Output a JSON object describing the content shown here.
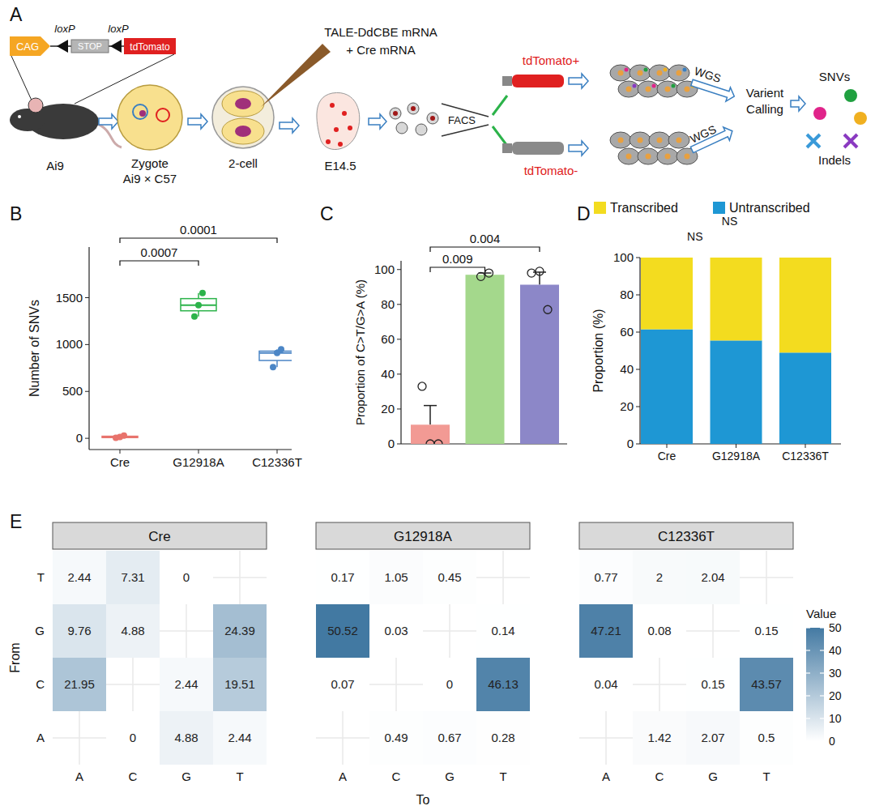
{
  "panel_labels": [
    "A",
    "B",
    "C",
    "D",
    "E"
  ],
  "diagram": {
    "promoter": "CAG",
    "site_labels": [
      "loxP",
      "loxP"
    ],
    "stop": "STOP",
    "reporter": "tdTomato",
    "mouse": "Ai9",
    "zygote": "Zygote",
    "cross": "Ai9 × C57",
    "two_cell": "2-cell",
    "injection": [
      "TALE-DdCBE mRNA",
      "+ Cre mRNA"
    ],
    "embryo": "E14.5",
    "sorting": "FACS",
    "positive": "tdTomato+",
    "negative": "tdTomato-",
    "sequencing": [
      "WGS",
      "WGS"
    ],
    "calling": [
      "Varient",
      "Calling"
    ],
    "variants": [
      "SNVs",
      "Indels"
    ]
  },
  "chart_data": [
    {
      "type": "box",
      "y_label": "Number of SNVs",
      "categories": [
        "Cre",
        "G12918A",
        "C12336T"
      ],
      "colors": [
        "#e8736c",
        "#2cb34a",
        "#4c86c6"
      ],
      "boxes": [
        {
          "min": 5,
          "q1": 8,
          "median": 15,
          "q3": 22,
          "max": 30,
          "points": [
            5,
            15,
            30
          ]
        },
        {
          "min": 1300,
          "q1": 1360,
          "median": 1420,
          "q3": 1490,
          "max": 1550,
          "points": [
            1300,
            1420,
            1550
          ]
        },
        {
          "min": 760,
          "q1": 830,
          "median": 910,
          "q3": 930,
          "max": 950,
          "points": [
            760,
            910,
            950
          ]
        }
      ],
      "ylim": [
        -120,
        2040
      ],
      "yticks": [
        0,
        500,
        1000,
        1500
      ],
      "annotations": [
        {
          "text": "0.0007",
          "between": [
            0,
            1
          ]
        },
        {
          "text": "0.0001",
          "between": [
            0,
            2
          ]
        }
      ]
    },
    {
      "type": "bar",
      "y_label": "Proportion of C>T/G>A (%)",
      "values": [
        11,
        97,
        91.3
      ],
      "errors": [
        11,
        1,
        7.2
      ],
      "points": [
        [
          33,
          0,
          0
        ],
        [
          96,
          98
        ],
        [
          98,
          99,
          77
        ]
      ],
      "colors": [
        "#f29a94",
        "#a4d88c",
        "#8c87c8"
      ],
      "ylim": [
        0,
        105
      ],
      "yticks": [
        0,
        20,
        40,
        60,
        80,
        100
      ],
      "tick_labels": "y",
      "annotations": [
        {
          "text": "0.009",
          "between": [
            0,
            1
          ]
        },
        {
          "text": "0.004",
          "between": [
            0,
            2
          ]
        }
      ]
    },
    {
      "type": "bar",
      "stacked": true,
      "y_label": "Proportion (%)",
      "categories": [
        "Cre",
        "G12918A",
        "C12336T"
      ],
      "series": [
        {
          "name": "Transcribed",
          "color": "#f3dc1f",
          "values": [
            38.5,
            44.5,
            51
          ]
        },
        {
          "name": "Untranscribed",
          "color": "#1e97d4",
          "values": [
            61.5,
            55.5,
            49
          ]
        }
      ],
      "ylim": [
        0,
        100
      ],
      "yticks": [
        0,
        20,
        40,
        60,
        80,
        100
      ],
      "legend": "top",
      "annotations": [
        {
          "text": "NS",
          "between": [
            0,
            1
          ]
        },
        {
          "text": "NS",
          "between": [
            0,
            2
          ]
        }
      ]
    },
    {
      "type": "heatmap",
      "title": "Cre",
      "rows": [
        "T",
        "G",
        "C",
        "A"
      ],
      "columns": [
        "A",
        "C",
        "G",
        "T"
      ],
      "y_label": "From",
      "data_labels": true,
      "cells": [
        [
          2.44,
          7.31,
          0,
          null
        ],
        [
          9.76,
          4.88,
          null,
          24.39
        ],
        [
          21.95,
          null,
          2.44,
          19.51
        ],
        [
          null,
          0,
          4.88,
          2.44
        ]
      ]
    },
    {
      "type": "heatmap",
      "title": "G12918A",
      "rows": [
        "T",
        "G",
        "C",
        "A"
      ],
      "columns": [
        "A",
        "C",
        "G",
        "T"
      ],
      "x_label": "To",
      "data_labels": true,
      "tick_labels": "x",
      "cells": [
        [
          0.17,
          1.05,
          0.45,
          null
        ],
        [
          50.52,
          0.03,
          null,
          0.14
        ],
        [
          0.07,
          null,
          0,
          46.13
        ],
        [
          null,
          0.49,
          0.67,
          0.28
        ]
      ]
    },
    {
      "type": "heatmap",
      "title": "C12336T",
      "rows": [
        "T",
        "G",
        "C",
        "A"
      ],
      "columns": [
        "A",
        "C",
        "G",
        "T"
      ],
      "data_labels": true,
      "tick_labels": "x",
      "cells": [
        [
          0.77,
          2,
          2.04,
          null
        ],
        [
          47.21,
          0.08,
          null,
          0.15
        ],
        [
          0.04,
          null,
          0.15,
          43.57
        ],
        [
          null,
          1.42,
          2.07,
          0.5
        ]
      ],
      "colorbar": {
        "title": "Value",
        "range": [
          0,
          50
        ],
        "ticks": [
          0,
          10,
          20,
          30,
          40,
          50
        ]
      }
    }
  ]
}
